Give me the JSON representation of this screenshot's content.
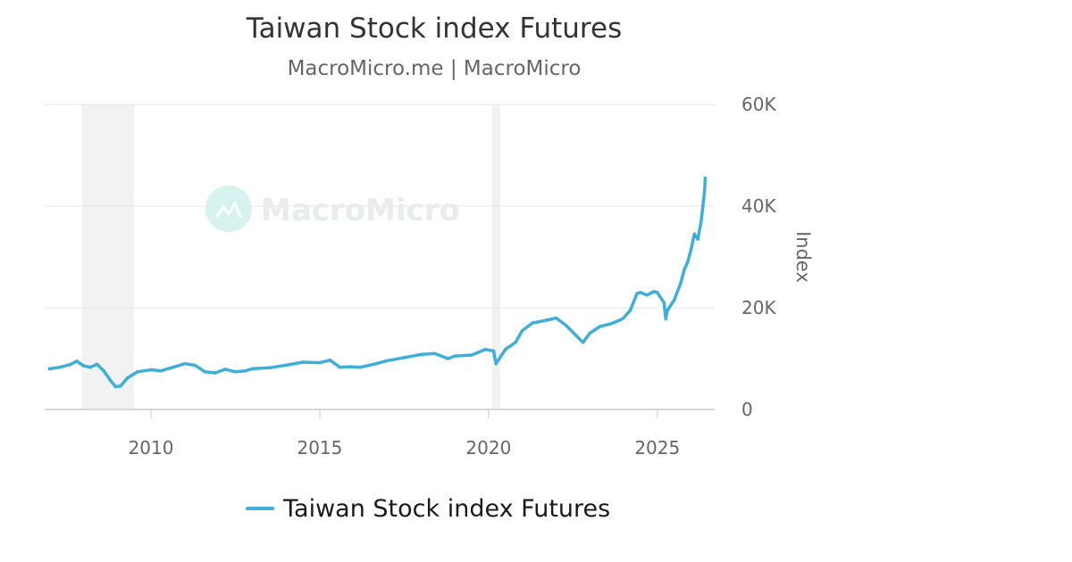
{
  "title": "Taiwan Stock index Futures",
  "subtitle": "MacroMicro.me | MacroMicro",
  "watermark": "MacroMicro",
  "colors": {
    "series": "#3eafd9",
    "grid": "#e6e6e6",
    "band": "#f2f2f2",
    "text": "#666666",
    "watermark_icon": "#d6f3f0"
  },
  "chart_data": {
    "type": "line",
    "ylabel": "Index",
    "y_axis_position": "right",
    "ylim": [
      0,
      60000
    ],
    "yticks": [
      0,
      20000,
      40000,
      60000
    ],
    "ytick_labels": [
      "0",
      "20K",
      "40K",
      "60K"
    ],
    "xlim": [
      2006.85,
      2026.7
    ],
    "xticks": [
      2010,
      2015,
      2020,
      2025
    ],
    "xtick_labels": [
      "2010",
      "2015",
      "2020",
      "2025"
    ],
    "grid": true,
    "legend_position": "bottom-center",
    "shaded_periods": [
      [
        2007.95,
        2009.5
      ],
      [
        2020.1,
        2020.35
      ]
    ],
    "series": [
      {
        "name": "Taiwan Stock index Futures",
        "x": [
          2007.0,
          2007.3,
          2007.6,
          2007.8,
          2008.0,
          2008.2,
          2008.4,
          2008.6,
          2008.8,
          2008.95,
          2009.1,
          2009.3,
          2009.6,
          2010.0,
          2010.3,
          2010.6,
          2011.0,
          2011.3,
          2011.6,
          2011.9,
          2012.2,
          2012.5,
          2012.8,
          2013.0,
          2013.5,
          2014.0,
          2014.5,
          2015.0,
          2015.3,
          2015.6,
          2015.9,
          2016.2,
          2016.6,
          2017.0,
          2017.5,
          2018.0,
          2018.4,
          2018.8,
          2019.0,
          2019.5,
          2019.9,
          2020.15,
          2020.22,
          2020.5,
          2020.8,
          2021.0,
          2021.3,
          2021.6,
          2021.9,
          2022.0,
          2022.3,
          2022.6,
          2022.8,
          2023.0,
          2023.3,
          2023.6,
          2023.9,
          2024.0,
          2024.2,
          2024.4,
          2024.5,
          2024.7,
          2024.9,
          2025.0,
          2025.2,
          2025.25,
          2025.3,
          2025.5,
          2025.7,
          2025.8,
          2025.9,
          2026.0,
          2026.1,
          2026.2,
          2026.3,
          2026.35,
          2026.4,
          2026.42
        ],
        "values": [
          8000,
          8300,
          8800,
          9500,
          8600,
          8300,
          8900,
          7600,
          5700,
          4500,
          4600,
          6200,
          7400,
          7800,
          7600,
          8200,
          9000,
          8700,
          7400,
          7200,
          7900,
          7400,
          7600,
          8000,
          8200,
          8700,
          9300,
          9200,
          9700,
          8300,
          8400,
          8300,
          8900,
          9600,
          10200,
          10800,
          11000,
          10000,
          10500,
          10700,
          11800,
          11500,
          9000,
          11800,
          13200,
          15500,
          17000,
          17400,
          17800,
          18000,
          16500,
          14500,
          13200,
          15000,
          16300,
          16800,
          17600,
          18000,
          19500,
          22800,
          23000,
          22500,
          23200,
          23000,
          21000,
          17800,
          19500,
          21500,
          25000,
          27500,
          29000,
          31500,
          34500,
          33500,
          37000,
          40000,
          43000,
          45500
        ]
      }
    ]
  }
}
